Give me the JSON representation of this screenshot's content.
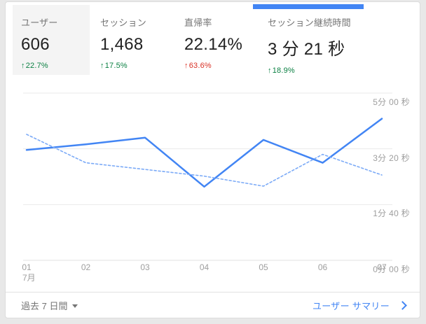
{
  "colors": {
    "accent_blue": "#4285f4",
    "previous_line_blue": "#7baaf7",
    "positive_green": "#0b8043",
    "negative_red": "#d93025",
    "label_gray": "#757575",
    "value_dark": "#212121",
    "axis_gray": "#9e9e9e",
    "page_background": "#e8e8e8",
    "hover_tab_gray": "#f4f4f4"
  },
  "tabs": [
    {
      "label": "ユーザー",
      "value": "606",
      "arrow": "↑",
      "delta": "22.7%",
      "delta_color": "#0b8043",
      "active": false,
      "highlighted": true
    },
    {
      "label": "セッション",
      "value": "1,468",
      "arrow": "↑",
      "delta": "17.5%",
      "delta_color": "#0b8043",
      "active": false,
      "highlighted": false
    },
    {
      "label": "直帰率",
      "value": "22.14%",
      "arrow": "↑",
      "delta": "63.6%",
      "delta_color": "#d93025",
      "active": false,
      "highlighted": false
    },
    {
      "label": "セッション継続時間",
      "value": "3 分 21 秒",
      "arrow": "↑",
      "delta": "18.9%",
      "delta_color": "#0b8043",
      "active": true,
      "highlighted": false
    }
  ],
  "chart_data": {
    "type": "line",
    "title": "セッション継続時間",
    "unit": "seconds",
    "x": [
      "01",
      "02",
      "03",
      "04",
      "05",
      "06",
      "07"
    ],
    "x_sublabel": "7月",
    "series": [
      {
        "name": "current-period",
        "style": "solid",
        "values": [
          198,
          208,
          220,
          132,
          216,
          175,
          254
        ]
      },
      {
        "name": "previous-period",
        "style": "dashed",
        "values": [
          226,
          175,
          163,
          151,
          133,
          190,
          153
        ]
      }
    ],
    "y_ticks": [
      {
        "value": 300,
        "label": "5分 00 秒"
      },
      {
        "value": 200,
        "label": "3分 20 秒"
      },
      {
        "value": 100,
        "label": "1分 40 秒"
      },
      {
        "value": 0,
        "label": "0分 00 秒"
      }
    ],
    "ylim": [
      0,
      300
    ],
    "grid": true,
    "legend_position": "none"
  },
  "footer": {
    "date_range_label": "過去 7 日間",
    "summary_label": "ユーザー サマリー"
  }
}
